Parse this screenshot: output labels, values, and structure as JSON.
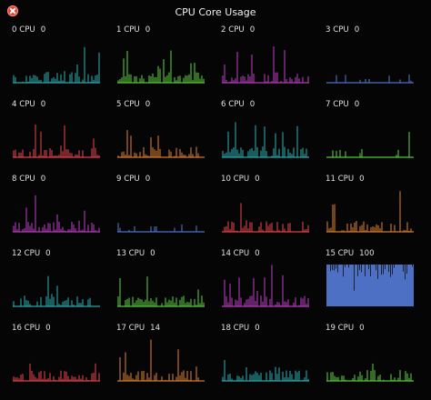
{
  "window": {
    "title": "CPU Core Usage"
  },
  "cpu_word": "CPU",
  "cores": [
    {
      "id": "0",
      "usage": "0",
      "color": "#2aa5a8"
    },
    {
      "id": "1",
      "usage": "0",
      "color": "#56c43a"
    },
    {
      "id": "2",
      "usage": "0",
      "color": "#b03bb6"
    },
    {
      "id": "3",
      "usage": "0",
      "color": "#4d6fc4"
    },
    {
      "id": "4",
      "usage": "0",
      "color": "#d6424a"
    },
    {
      "id": "5",
      "usage": "0",
      "color": "#cf7a2c"
    },
    {
      "id": "6",
      "usage": "0",
      "color": "#2aa5a8"
    },
    {
      "id": "7",
      "usage": "0",
      "color": "#56c43a"
    },
    {
      "id": "8",
      "usage": "0",
      "color": "#b03bb6"
    },
    {
      "id": "9",
      "usage": "0",
      "color": "#4d6fc4"
    },
    {
      "id": "10",
      "usage": "0",
      "color": "#d6424a"
    },
    {
      "id": "11",
      "usage": "0",
      "color": "#cf7a2c"
    },
    {
      "id": "12",
      "usage": "0",
      "color": "#2aa5a8"
    },
    {
      "id": "13",
      "usage": "0",
      "color": "#56c43a"
    },
    {
      "id": "14",
      "usage": "0",
      "color": "#b03bb6"
    },
    {
      "id": "15",
      "usage": "100",
      "color": "#4d6fc4"
    },
    {
      "id": "16",
      "usage": "0",
      "color": "#d6424a"
    },
    {
      "id": "17",
      "usage": "14",
      "color": "#cf7a2c"
    },
    {
      "id": "18",
      "usage": "0",
      "color": "#2aa5a8"
    },
    {
      "id": "19",
      "usage": "0",
      "color": "#56c43a"
    }
  ]
}
